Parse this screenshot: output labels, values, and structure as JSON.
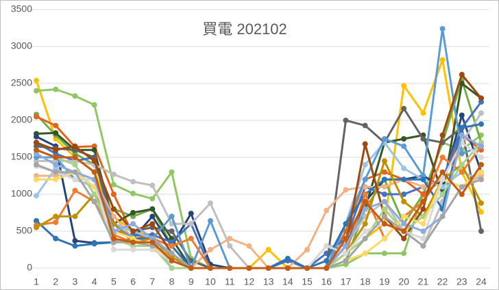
{
  "chart_data": {
    "type": "line",
    "title": "買電 202102",
    "categories": [
      "1",
      "2",
      "3",
      "4",
      "5",
      "6",
      "7",
      "8",
      "9",
      "10",
      "11",
      "12",
      "13",
      "14",
      "15",
      "16",
      "17",
      "18",
      "19",
      "20",
      "21",
      "22",
      "23",
      "24"
    ],
    "ylim": [
      0,
      3500
    ],
    "yticks": [
      0,
      500,
      1000,
      1500,
      2000,
      2500,
      3000,
      3500
    ],
    "grid": true,
    "series": [
      {
        "color": "#ffc000",
        "values": [
          2540,
          1750,
          1500,
          1300,
          700,
          500,
          450,
          100,
          0,
          0,
          0,
          0,
          250,
          0,
          0,
          0,
          100,
          400,
          600,
          2470,
          2100,
          2820,
          1300,
          760
        ]
      },
      {
        "color": "#8fc863",
        "values": [
          2400,
          2420,
          2330,
          2210,
          1130,
          1010,
          940,
          1300,
          130,
          0,
          0,
          0,
          0,
          0,
          0,
          0,
          50,
          200,
          200,
          200,
          1000,
          1700,
          1600,
          1800
        ]
      },
      {
        "color": "#70ad47",
        "values": [
          2080,
          1800,
          1550,
          1400,
          800,
          700,
          800,
          300,
          0,
          0,
          0,
          0,
          0,
          0,
          0,
          0,
          100,
          800,
          1200,
          600,
          1000,
          1700,
          2550,
          1700
        ]
      },
      {
        "color": "#e0651e",
        "values": [
          2050,
          1930,
          1640,
          1650,
          1000,
          450,
          400,
          200,
          0,
          0,
          0,
          0,
          0,
          0,
          0,
          0,
          500,
          1200,
          1300,
          1200,
          1000,
          1200,
          1800,
          1600
        ]
      },
      {
        "color": "#375623",
        "values": [
          1820,
          1830,
          1600,
          1600,
          600,
          750,
          800,
          400,
          0,
          0,
          0,
          0,
          0,
          0,
          0,
          0,
          300,
          800,
          1700,
          1750,
          1800,
          1000,
          2500,
          2300
        ]
      },
      {
        "color": "#264478",
        "values": [
          1780,
          1650,
          370,
          340,
          350,
          400,
          700,
          300,
          740,
          50,
          0,
          0,
          0,
          0,
          0,
          0,
          300,
          900,
          1200,
          1200,
          1250,
          1100,
          2070,
          1300
        ]
      },
      {
        "color": "#4472c4",
        "values": [
          1700,
          1550,
          1450,
          1500,
          500,
          450,
          450,
          350,
          600,
          0,
          0,
          0,
          0,
          100,
          0,
          200,
          400,
          1100,
          1000,
          1000,
          1100,
          1200,
          1900,
          2250
        ]
      },
      {
        "color": "#636363",
        "values": [
          1650,
          1620,
          1600,
          1500,
          600,
          500,
          550,
          500,
          100,
          0,
          0,
          0,
          0,
          0,
          0,
          0,
          2000,
          1930,
          1700,
          2160,
          1750,
          1700,
          1900,
          500
        ]
      },
      {
        "color": "#bfbfbf",
        "values": [
          1450,
          1450,
          1450,
          1400,
          1270,
          1170,
          1120,
          600,
          600,
          880,
          300,
          0,
          0,
          0,
          0,
          300,
          300,
          700,
          900,
          500,
          300,
          900,
          1700,
          2100
        ]
      },
      {
        "color": "#f4b183",
        "values": [
          1250,
          1250,
          1300,
          1200,
          700,
          400,
          400,
          200,
          0,
          250,
          400,
          300,
          0,
          0,
          250,
          780,
          1060,
          1100,
          1100,
          1200,
          1100,
          1200,
          1100,
          1250
        ]
      },
      {
        "color": "#9dc3e6",
        "values": [
          980,
          1350,
          1200,
          1100,
          600,
          500,
          400,
          0,
          0,
          0,
          0,
          0,
          0,
          0,
          0,
          0,
          600,
          1400,
          1700,
          1350,
          1200,
          1100,
          1300,
          1200
        ]
      },
      {
        "color": "#5b9bd5",
        "values": [
          1500,
          1500,
          1200,
          1200,
          600,
          400,
          400,
          700,
          0,
          640,
          0,
          0,
          0,
          0,
          0,
          0,
          600,
          1200,
          1750,
          1650,
          1250,
          3240,
          1550,
          1650
        ]
      },
      {
        "color": "#2e75b6",
        "values": [
          640,
          400,
          300,
          330,
          350,
          400,
          400,
          300,
          0,
          0,
          0,
          0,
          0,
          130,
          0,
          100,
          600,
          1000,
          1200,
          1200,
          1200,
          800,
          1900,
          1950
        ]
      },
      {
        "color": "#ed7d31",
        "values": [
          580,
          620,
          1050,
          900,
          450,
          350,
          400,
          300,
          400,
          0,
          0,
          0,
          0,
          0,
          0,
          0,
          200,
          1000,
          400,
          700,
          900,
          1500,
          1300,
          1650
        ]
      },
      {
        "color": "#bf9000",
        "values": [
          550,
          700,
          700,
          1000,
          600,
          350,
          400,
          150,
          0,
          0,
          0,
          0,
          0,
          0,
          0,
          0,
          200,
          600,
          1450,
          900,
          700,
          1200,
          1400,
          880
        ]
      },
      {
        "color": "#9e480e",
        "values": [
          1700,
          1600,
          1650,
          1450,
          800,
          500,
          600,
          200,
          0,
          0,
          0,
          0,
          0,
          0,
          0,
          0,
          300,
          1680,
          700,
          400,
          800,
          1800,
          2620,
          2300
        ]
      },
      {
        "color": "#a9d18e",
        "values": [
          1600,
          1500,
          1400,
          1000,
          400,
          300,
          300,
          0,
          0,
          0,
          0,
          0,
          0,
          0,
          0,
          0,
          200,
          400,
          800,
          500,
          700,
          1000,
          1400,
          1700
        ]
      },
      {
        "color": "#ffd966",
        "values": [
          1200,
          1200,
          1300,
          1100,
          500,
          400,
          300,
          100,
          0,
          0,
          0,
          0,
          0,
          0,
          0,
          0,
          100,
          200,
          400,
          700,
          600,
          1200,
          1100,
          1300
        ]
      },
      {
        "color": "#d9d9d9",
        "values": [
          1380,
          1300,
          1200,
          1200,
          250,
          250,
          250,
          100,
          0,
          0,
          0,
          0,
          0,
          0,
          0,
          300,
          200,
          500,
          600,
          500,
          400,
          1200,
          1700,
          1500
        ]
      },
      {
        "color": "#8faadc",
        "values": [
          1550,
          1400,
          1300,
          1200,
          500,
          600,
          400,
          200,
          0,
          0,
          0,
          0,
          0,
          0,
          0,
          0,
          300,
          800,
          900,
          600,
          500,
          700,
          1800,
          1650
        ]
      },
      {
        "color": "#a5a5a5",
        "values": [
          1400,
          1300,
          1300,
          900,
          350,
          350,
          300,
          200,
          0,
          0,
          0,
          0,
          0,
          0,
          0,
          0,
          100,
          400,
          700,
          500,
          300,
          700,
          1100,
          1200
        ]
      },
      {
        "color": "#c55a11",
        "values": [
          1600,
          1500,
          1500,
          1300,
          400,
          350,
          350,
          100,
          0,
          0,
          0,
          0,
          0,
          0,
          0,
          0,
          400,
          900,
          600,
          500,
          900,
          1300,
          1000,
          1400
        ]
      }
    ]
  }
}
